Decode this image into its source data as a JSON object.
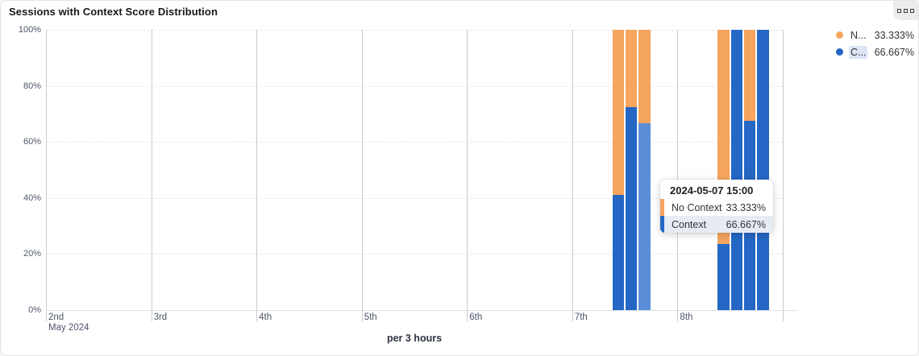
{
  "card": {
    "title": "Sessions with Context Score Distribution"
  },
  "legend": {
    "items": [
      {
        "label": "N...",
        "value": "33.333%",
        "color": "#f6a55e",
        "highlighted": false
      },
      {
        "label": "C...",
        "value": "66.667%",
        "color": "#2467c4",
        "highlighted": true
      }
    ]
  },
  "tooltip": {
    "title": "2024-05-07 15:00",
    "rows": [
      {
        "label": "No Context",
        "value": "33.333%",
        "color": "#f6a55e",
        "highlighted": false
      },
      {
        "label": "Context",
        "value": "66.667%",
        "color": "#2467c4",
        "highlighted": true
      }
    ]
  },
  "chart_data": {
    "type": "bar",
    "stacked": true,
    "unit": "percent",
    "title": "Sessions with Context Score Distribution",
    "xlabel": "per 3 hours",
    "ylabel": "",
    "ylim": [
      0,
      100
    ],
    "y_ticks": [
      0,
      20,
      40,
      60,
      80,
      100
    ],
    "y_tick_suffix": "%",
    "x_tick_labels": [
      "2nd",
      "3rd",
      "4th",
      "5th",
      "6th",
      "7th",
      "8th"
    ],
    "x_sub_label": "May 2024",
    "days_span": 7,
    "slots_per_day": 8,
    "grid": true,
    "legend_position": "top-right",
    "series": [
      {
        "name": "No Context",
        "color": "#f6a55e"
      },
      {
        "name": "Context",
        "color": "#2467c4"
      }
    ],
    "highlight_color": "#5b8ed9",
    "bars": [
      {
        "date": "2024-05-07",
        "time": "09:00",
        "day_index": 5,
        "slot_index": 3,
        "context": 41,
        "no_context": 59,
        "highlighted": false
      },
      {
        "date": "2024-05-07",
        "time": "12:00",
        "day_index": 5,
        "slot_index": 4,
        "context": 72.5,
        "no_context": 27.5,
        "highlighted": false
      },
      {
        "date": "2024-05-07",
        "time": "15:00",
        "day_index": 5,
        "slot_index": 5,
        "context": 66.667,
        "no_context": 33.333,
        "highlighted": true
      },
      {
        "date": "2024-05-08",
        "time": "09:00",
        "day_index": 6,
        "slot_index": 3,
        "context": 23.5,
        "no_context": 76.5,
        "highlighted": false
      },
      {
        "date": "2024-05-08",
        "time": "12:00",
        "day_index": 6,
        "slot_index": 4,
        "context": 100,
        "no_context": 0,
        "highlighted": false
      },
      {
        "date": "2024-05-08",
        "time": "15:00",
        "day_index": 6,
        "slot_index": 5,
        "context": 67.5,
        "no_context": 32.5,
        "highlighted": false
      },
      {
        "date": "2024-05-08",
        "time": "18:00",
        "day_index": 6,
        "slot_index": 6,
        "context": 100,
        "no_context": 0,
        "highlighted": false
      }
    ]
  }
}
